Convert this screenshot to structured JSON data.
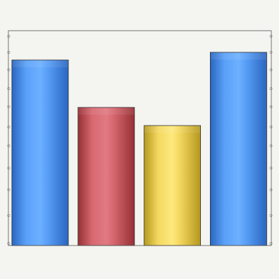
{
  "chart_data": {
    "type": "bar",
    "categories": [
      "",
      "",
      "",
      ""
    ],
    "values": [
      266,
      198,
      172,
      277
    ],
    "ylim": [
      0,
      308
    ],
    "grid": false,
    "legend": "none",
    "colors": {
      "page_background": "#f4f4f0",
      "plot_background": "#f4f4f0",
      "frame": "#555555",
      "tick_dot": "#999999",
      "bar_outline": "#333333"
    },
    "bar_styles": [
      {
        "dark": "#2a66c0",
        "mid": "#5aa0f8",
        "light": "#6db0ff"
      },
      {
        "dark": "#963036",
        "mid": "#d86870",
        "light": "#e07a82"
      },
      {
        "dark": "#b4981e",
        "mid": "#f4d860",
        "light": "#fde97e"
      },
      {
        "dark": "#2a66c0",
        "mid": "#5aa0f8",
        "light": "#6db0ff"
      }
    ]
  }
}
